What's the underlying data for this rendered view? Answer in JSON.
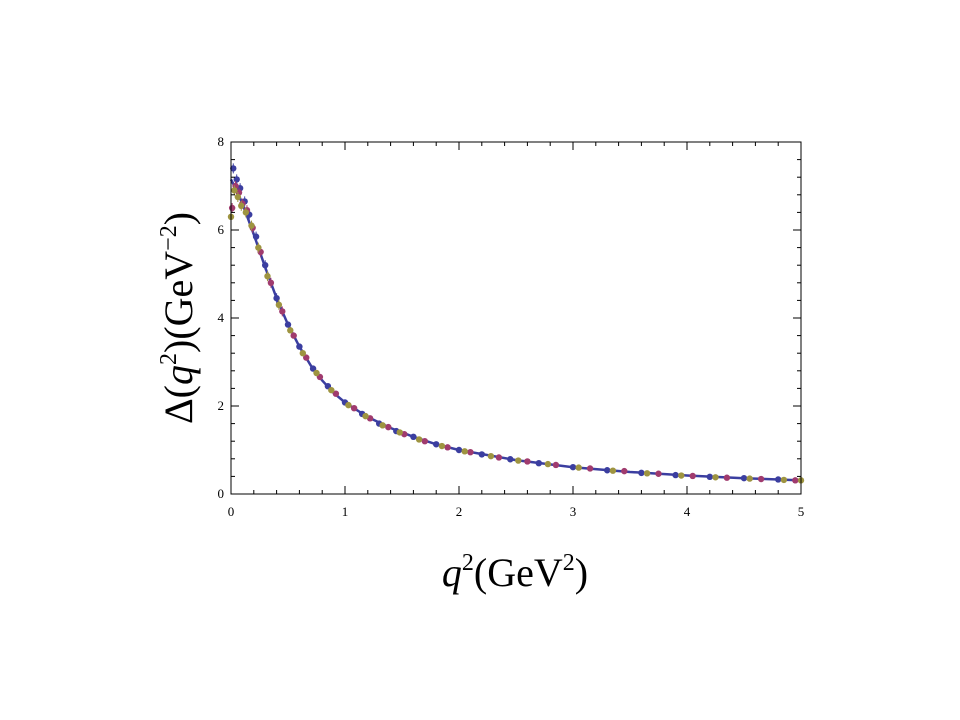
{
  "chart_data": {
    "type": "scatter",
    "title": "",
    "xlabel": {
      "base": "q",
      "exp": "2",
      "unit_open": "(GeV",
      "unit_exp": "2",
      "unit_close": ")"
    },
    "ylabel": {
      "delta": "Δ(",
      "q": "q",
      "q_exp": "2",
      "unit_open": ")(GeV",
      "unit_exp": "−2",
      "unit_close": ")"
    },
    "xlim": [
      0,
      5
    ],
    "ylim": [
      0,
      8
    ],
    "xticks": [
      0,
      1,
      2,
      3,
      4,
      5
    ],
    "yticks": [
      0,
      2,
      4,
      6,
      8
    ],
    "grid": false,
    "legend": "none",
    "curve": {
      "color": "#3b3ea0",
      "x": [
        0.0,
        0.05,
        0.1,
        0.15,
        0.2,
        0.3,
        0.4,
        0.5,
        0.6,
        0.7,
        0.8,
        0.9,
        1.0,
        1.2,
        1.4,
        1.6,
        1.8,
        2.0,
        2.5,
        3.0,
        3.5,
        4.0,
        4.5,
        5.0
      ],
      "y": [
        7.15,
        6.9,
        6.6,
        6.25,
        5.9,
        5.15,
        4.45,
        3.85,
        3.35,
        2.92,
        2.58,
        2.3,
        2.08,
        1.75,
        1.5,
        1.3,
        1.13,
        1.0,
        0.77,
        0.61,
        0.5,
        0.42,
        0.36,
        0.31
      ]
    },
    "series": [
      {
        "color": "#3b3ea0",
        "x": [
          0.02,
          0.05,
          0.08,
          0.12,
          0.16,
          0.22,
          0.3,
          0.4,
          0.5,
          0.6,
          0.72,
          0.85,
          1.0,
          1.15,
          1.3,
          1.45,
          1.6,
          1.8,
          2.0,
          2.2,
          2.45,
          2.7,
          3.0,
          3.3,
          3.6,
          3.9,
          4.2,
          4.5,
          4.8
        ],
        "y": [
          7.4,
          7.15,
          6.95,
          6.65,
          6.35,
          5.85,
          5.2,
          4.45,
          3.85,
          3.35,
          2.85,
          2.45,
          2.08,
          1.82,
          1.6,
          1.43,
          1.3,
          1.13,
          1.0,
          0.9,
          0.79,
          0.7,
          0.61,
          0.54,
          0.48,
          0.43,
          0.39,
          0.36,
          0.33
        ]
      },
      {
        "color": "#a03b6e",
        "x": [
          0.01,
          0.04,
          0.07,
          0.1,
          0.14,
          0.19,
          0.26,
          0.35,
          0.45,
          0.55,
          0.66,
          0.78,
          0.92,
          1.08,
          1.22,
          1.38,
          1.52,
          1.7,
          1.9,
          2.1,
          2.35,
          2.6,
          2.85,
          3.15,
          3.45,
          3.75,
          4.05,
          4.35,
          4.65,
          4.95
        ],
        "y": [
          6.5,
          7.0,
          6.85,
          6.6,
          6.45,
          6.05,
          5.5,
          4.8,
          4.15,
          3.6,
          3.1,
          2.66,
          2.28,
          1.95,
          1.72,
          1.52,
          1.36,
          1.2,
          1.06,
          0.95,
          0.83,
          0.74,
          0.66,
          0.58,
          0.52,
          0.46,
          0.41,
          0.37,
          0.34,
          0.31
        ]
      },
      {
        "color": "#9e9440",
        "x": [
          0.0,
          0.03,
          0.06,
          0.09,
          0.13,
          0.18,
          0.24,
          0.32,
          0.42,
          0.52,
          0.63,
          0.75,
          0.88,
          1.03,
          1.18,
          1.33,
          1.48,
          1.65,
          1.85,
          2.05,
          2.28,
          2.52,
          2.78,
          3.05,
          3.35,
          3.65,
          3.95,
          4.25,
          4.55,
          4.85,
          5.0
        ],
        "y": [
          6.3,
          6.9,
          6.75,
          6.55,
          6.4,
          6.1,
          5.6,
          4.95,
          4.3,
          3.72,
          3.2,
          2.75,
          2.36,
          2.02,
          1.77,
          1.56,
          1.4,
          1.24,
          1.09,
          0.97,
          0.86,
          0.76,
          0.68,
          0.6,
          0.53,
          0.47,
          0.42,
          0.38,
          0.35,
          0.32,
          0.31
        ]
      }
    ]
  }
}
